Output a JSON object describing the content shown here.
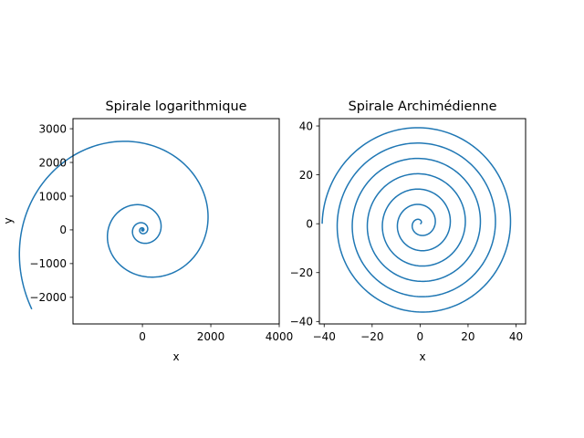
{
  "chart_data": [
    {
      "type": "line",
      "title": "Spirale logarithmique",
      "xlabel": "x",
      "ylabel": "y",
      "xlim": [
        -2030,
        4000
      ],
      "ylim": [
        -2790,
        3300
      ],
      "xticks": [
        0,
        2000,
        4000
      ],
      "yticks": [
        -2000,
        -1000,
        0,
        1000,
        2000,
        3000
      ],
      "grid": false,
      "spiral": {
        "kind": "logarithmic",
        "a": 1,
        "b": 0.2,
        "theta_max_turns": 6.6
      },
      "series": [
        {
          "color": "#1f77b4"
        }
      ]
    },
    {
      "type": "line",
      "title": "Spirale Archimédienne",
      "xlabel": "x",
      "ylabel": "",
      "xlim": [
        -42,
        44
      ],
      "ylim": [
        -41,
        43
      ],
      "xticks": [
        -40,
        -20,
        0,
        20,
        40
      ],
      "yticks": [
        -40,
        -20,
        0,
        20,
        40
      ],
      "grid": false,
      "spiral": {
        "kind": "archimedean",
        "a": 0,
        "b": 1,
        "theta_max_turns": 6.5
      },
      "series": [
        {
          "color": "#1f77b4"
        }
      ]
    }
  ]
}
